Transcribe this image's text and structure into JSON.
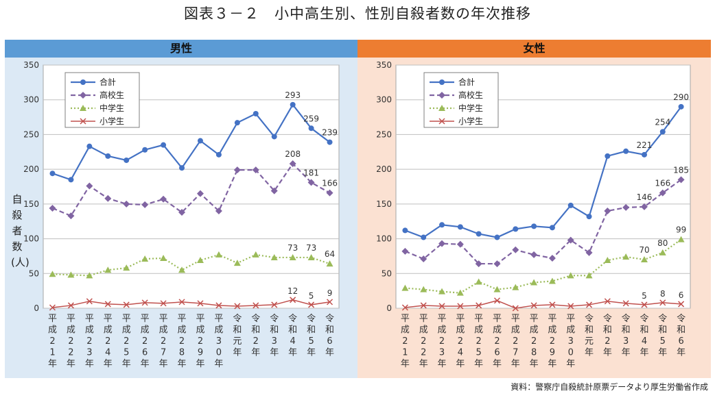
{
  "title": "図表３－２　小中高生別、性別自殺者数の年次推移",
  "source": "資料：警察庁自殺統計原票データより厚生労働省作成",
  "ylabel": "自殺者数(人)",
  "colors": {
    "total": "#4472c4",
    "high": "#8064a2",
    "middle": "#9bbb59",
    "elementary": "#c0504d"
  },
  "chart_data": [
    {
      "type": "line",
      "title": "男性",
      "ylabel": "自殺者数(人)",
      "ylim": [
        0,
        350
      ],
      "yticks": [
        "0",
        "50",
        "100",
        "150",
        "200",
        "250",
        "300",
        "350"
      ],
      "legend_position": "top-left",
      "categories": [
        "平成21年",
        "平成22年",
        "平成23年",
        "平成24年",
        "平成25年",
        "平成26年",
        "平成27年",
        "平成28年",
        "平成29年",
        "平成30年",
        "令和元年",
        "令和2年",
        "令和3年",
        "令和4年",
        "令和5年",
        "令和6年"
      ],
      "series": [
        {
          "name": "合計",
          "key": "total",
          "values": [
            194,
            185,
            233,
            219,
            213,
            228,
            235,
            202,
            241,
            221,
            267,
            280,
            247,
            293,
            259,
            239
          ]
        },
        {
          "name": "高校生",
          "key": "high",
          "values": [
            144,
            133,
            176,
            158,
            150,
            149,
            157,
            138,
            165,
            140,
            199,
            199,
            169,
            208,
            181,
            166
          ]
        },
        {
          "name": "中学生",
          "key": "middle",
          "values": [
            49,
            48,
            47,
            55,
            58,
            71,
            72,
            55,
            69,
            77,
            65,
            77,
            73,
            73,
            73,
            64
          ]
        },
        {
          "name": "小学生",
          "key": "elementary",
          "values": [
            1,
            4,
            10,
            6,
            5,
            8,
            7,
            9,
            7,
            4,
            3,
            4,
            5,
            12,
            5,
            9
          ]
        }
      ],
      "data_labels": {
        "total": [
          "",
          "",
          "",
          "",
          "",
          "",
          "",
          "",
          "",
          "",
          "",
          "",
          "",
          "293",
          "259",
          "239"
        ],
        "high": [
          "",
          "",
          "",
          "",
          "",
          "",
          "",
          "",
          "",
          "",
          "",
          "",
          "",
          "208",
          "181",
          "166"
        ],
        "middle": [
          "",
          "",
          "",
          "",
          "",
          "",
          "",
          "",
          "",
          "",
          "",
          "",
          "",
          "73",
          "73",
          "64"
        ],
        "elementary": [
          "",
          "",
          "",
          "",
          "",
          "",
          "",
          "",
          "",
          "",
          "",
          "",
          "",
          "12",
          "5",
          "9"
        ]
      }
    },
    {
      "type": "line",
      "title": "女性",
      "ylim": [
        0,
        350
      ],
      "yticks": [
        "0",
        "50",
        "100",
        "150",
        "200",
        "250",
        "300",
        "350"
      ],
      "legend_position": "top-left",
      "categories": [
        "平成21年",
        "平成22年",
        "平成23年",
        "平成24年",
        "平成25年",
        "平成26年",
        "平成27年",
        "平成28年",
        "平成29年",
        "平成30年",
        "令和元年",
        "令和2年",
        "令和3年",
        "令和4年",
        "令和5年",
        "令和6年"
      ],
      "series": [
        {
          "name": "合計",
          "key": "total",
          "values": [
            112,
            102,
            120,
            117,
            107,
            102,
            114,
            118,
            116,
            148,
            132,
            219,
            226,
            221,
            254,
            290
          ]
        },
        {
          "name": "高校生",
          "key": "high",
          "values": [
            82,
            71,
            93,
            92,
            64,
            64,
            84,
            77,
            72,
            98,
            80,
            140,
            145,
            146,
            166,
            185
          ]
        },
        {
          "name": "中学生",
          "key": "middle",
          "values": [
            29,
            27,
            24,
            22,
            38,
            27,
            30,
            37,
            39,
            47,
            47,
            69,
            74,
            70,
            80,
            99
          ]
        },
        {
          "name": "小学生",
          "key": "elementary",
          "values": [
            1,
            4,
            3,
            3,
            4,
            11,
            0,
            4,
            5,
            3,
            5,
            10,
            7,
            5,
            8,
            6
          ]
        }
      ],
      "data_labels": {
        "total": [
          "",
          "",
          "",
          "",
          "",
          "",
          "",
          "",
          "",
          "",
          "",
          "",
          "",
          "221",
          "254",
          "290"
        ],
        "high": [
          "",
          "",
          "",
          "",
          "",
          "",
          "",
          "",
          "",
          "",
          "",
          "",
          "",
          "146",
          "166",
          "185"
        ],
        "middle": [
          "",
          "",
          "",
          "",
          "",
          "",
          "",
          "",
          "",
          "",
          "",
          "",
          "",
          "70",
          "80",
          "99"
        ],
        "elementary": [
          "",
          "",
          "",
          "",
          "",
          "",
          "",
          "",
          "",
          "",
          "",
          "",
          "",
          "5",
          "8",
          "6"
        ]
      }
    }
  ]
}
